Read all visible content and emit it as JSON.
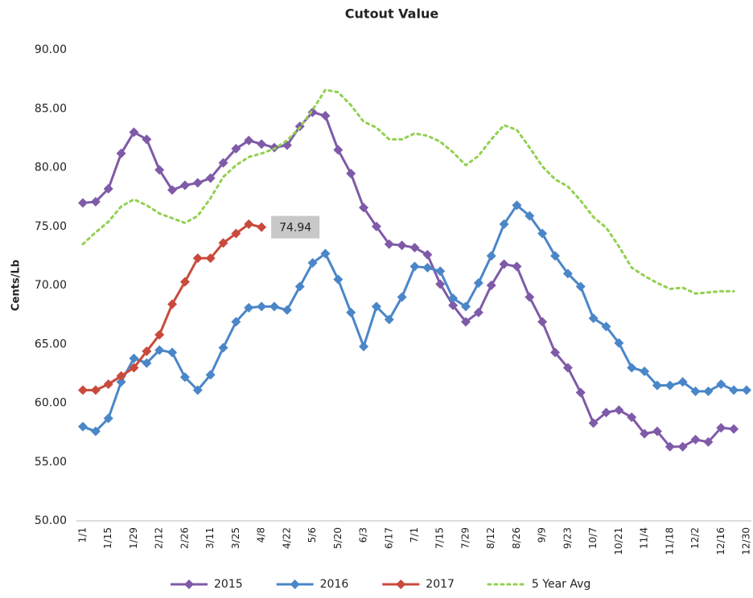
{
  "chart_data": {
    "type": "line",
    "title": "Cutout Value",
    "y_label": "Cents/Lb",
    "categories": [
      "1/1",
      null,
      "1/15",
      null,
      "1/29",
      null,
      "2/12",
      null,
      "2/26",
      null,
      "3/11",
      null,
      "3/25",
      null,
      "4/8",
      null,
      "4/22",
      null,
      "5/6",
      null,
      "5/20",
      null,
      "6/3",
      null,
      "6/17",
      null,
      "7/1",
      null,
      "7/15",
      null,
      "7/29",
      null,
      "8/12",
      null,
      "8/26",
      null,
      "9/9",
      null,
      "9/23",
      null,
      "10/7",
      null,
      "10/21",
      null,
      "11/4",
      null,
      "11/18",
      null,
      "12/2",
      null,
      "12/16",
      null,
      "12/30"
    ],
    "ylim": [
      50,
      90
    ],
    "yticks": [
      {
        "value": 50,
        "label": "50.00"
      },
      {
        "value": 55,
        "label": "55.00"
      },
      {
        "value": 60,
        "label": "60.00"
      },
      {
        "value": 65,
        "label": "65.00"
      },
      {
        "value": 70,
        "label": "70.00"
      },
      {
        "value": 75,
        "label": "75.00"
      },
      {
        "value": 80,
        "label": "80.00"
      },
      {
        "value": 85,
        "label": "85.00"
      },
      {
        "value": 90,
        "label": "90.00"
      }
    ],
    "grid": false,
    "legend": "bottom",
    "series": [
      {
        "name": "2015",
        "color": "#7f5aa8",
        "marker": "diamond",
        "dash": "solid",
        "values": [
          77.0,
          77.1,
          78.2,
          81.2,
          83.0,
          82.4,
          79.8,
          78.1,
          78.5,
          78.7,
          79.1,
          80.4,
          81.6,
          82.3,
          82.0,
          81.7,
          81.9,
          83.5,
          84.7,
          84.4,
          81.5,
          79.5,
          76.6,
          75.0,
          73.5,
          73.4,
          73.2,
          72.6,
          70.1,
          68.3,
          66.9,
          67.7,
          70.0,
          71.8,
          71.6,
          69.0,
          66.9,
          64.3,
          63.0,
          60.9,
          58.3,
          59.2,
          59.4,
          58.8,
          57.4,
          57.6,
          56.3,
          56.3,
          56.9,
          56.7,
          57.9,
          57.8,
          null
        ]
      },
      {
        "name": "2016",
        "color": "#4a86c8",
        "marker": "diamond",
        "dash": "solid",
        "values": [
          58.0,
          57.6,
          58.7,
          61.8,
          63.8,
          63.4,
          64.5,
          64.3,
          62.2,
          61.1,
          62.4,
          64.7,
          66.9,
          68.1,
          68.2,
          68.2,
          67.9,
          69.9,
          71.9,
          72.7,
          70.5,
          67.7,
          64.8,
          68.2,
          67.1,
          69.0,
          71.6,
          71.5,
          71.2,
          68.9,
          68.2,
          70.2,
          72.5,
          75.2,
          76.8,
          75.9,
          74.4,
          72.5,
          71.0,
          69.9,
          67.2,
          66.5,
          65.1,
          63.0,
          62.7,
          61.5,
          61.5,
          61.8,
          61.0,
          61.0,
          61.6,
          61.1,
          61.1
        ]
      },
      {
        "name": "2017",
        "color": "#c94a3c",
        "marker": "diamond",
        "dash": "solid",
        "label_last": true,
        "values": [
          61.1,
          61.1,
          61.6,
          62.3,
          63.0,
          64.4,
          65.8,
          68.4,
          70.3,
          72.3,
          72.3,
          73.6,
          74.4,
          75.2,
          74.94,
          null,
          null,
          null,
          null,
          null,
          null,
          null,
          null,
          null,
          null,
          null,
          null,
          null,
          null,
          null,
          null,
          null,
          null,
          null,
          null,
          null,
          null,
          null,
          null,
          null,
          null,
          null,
          null,
          null,
          null,
          null,
          null,
          null,
          null,
          null,
          null,
          null,
          null
        ]
      },
      {
        "name": "5 Year Avg",
        "color": "#92d050",
        "marker": "none",
        "dash": "dotted",
        "values": [
          73.5,
          74.5,
          75.4,
          76.7,
          77.3,
          76.8,
          76.1,
          75.7,
          75.3,
          75.9,
          77.4,
          79.2,
          80.2,
          80.9,
          81.2,
          81.6,
          82.3,
          83.4,
          84.9,
          86.6,
          86.4,
          85.3,
          83.9,
          83.4,
          82.4,
          82.4,
          82.9,
          82.7,
          82.2,
          81.3,
          80.2,
          81.0,
          82.4,
          83.6,
          83.2,
          81.7,
          80.1,
          79.0,
          78.4,
          77.2,
          75.8,
          74.9,
          73.3,
          71.5,
          70.8,
          70.2,
          69.7,
          69.8,
          69.3,
          69.4,
          69.5,
          69.5,
          null
        ]
      }
    ]
  }
}
